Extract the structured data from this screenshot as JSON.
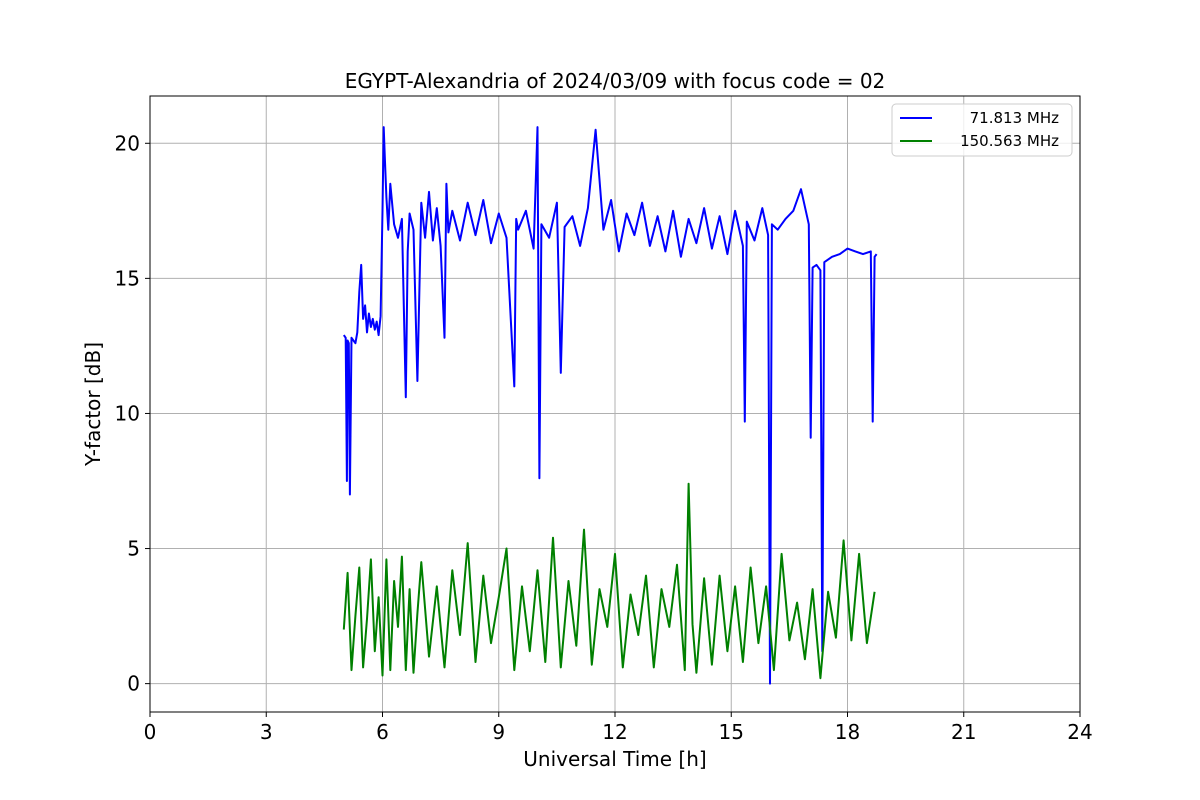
{
  "chart_data": {
    "type": "line",
    "title": "EGYPT-Alexandria of 2024/03/09 with focus code = 02",
    "xlabel": "Universal Time [h]",
    "ylabel": "Y-factor [dB]",
    "xlim": [
      0,
      24
    ],
    "ylim": [
      -1.05,
      21.75
    ],
    "xticks": [
      "0",
      "3",
      "6",
      "9",
      "12",
      "15",
      "18",
      "21",
      "24"
    ],
    "yticks": [
      "0",
      "5",
      "10",
      "15",
      "20"
    ],
    "grid": true,
    "legend_position": "top-right",
    "series": [
      {
        "name": "71.813 MHz",
        "color": "#0000ff",
        "x": [
          5.0,
          5.05,
          5.08,
          5.1,
          5.13,
          5.16,
          5.2,
          5.25,
          5.3,
          5.35,
          5.4,
          5.45,
          5.5,
          5.55,
          5.6,
          5.65,
          5.7,
          5.75,
          5.8,
          5.85,
          5.9,
          5.95,
          6.0,
          6.03,
          6.06,
          6.1,
          6.15,
          6.2,
          6.3,
          6.4,
          6.5,
          6.6,
          6.65,
          6.7,
          6.8,
          6.9,
          7.0,
          7.1,
          7.2,
          7.3,
          7.4,
          7.5,
          7.6,
          7.65,
          7.7,
          7.8,
          8.0,
          8.2,
          8.4,
          8.6,
          8.8,
          9.0,
          9.2,
          9.4,
          9.45,
          9.5,
          9.7,
          9.9,
          10.0,
          10.05,
          10.1,
          10.3,
          10.5,
          10.6,
          10.7,
          10.9,
          11.1,
          11.3,
          11.5,
          11.7,
          11.9,
          12.1,
          12.3,
          12.5,
          12.7,
          12.9,
          13.1,
          13.3,
          13.5,
          13.7,
          13.9,
          14.1,
          14.3,
          14.5,
          14.7,
          14.9,
          15.1,
          15.3,
          15.35,
          15.4,
          15.6,
          15.8,
          15.95,
          16.0,
          16.05,
          16.2,
          16.4,
          16.6,
          16.8,
          17.0,
          17.05,
          17.1,
          17.2,
          17.3,
          17.35,
          17.4,
          17.6,
          17.8,
          18.0,
          18.2,
          18.4,
          18.6,
          18.65,
          18.7,
          18.75
        ],
        "values": [
          12.9,
          12.8,
          7.5,
          12.7,
          12.6,
          7.0,
          12.8,
          12.7,
          12.6,
          13.0,
          14.5,
          15.5,
          13.5,
          14.0,
          13.0,
          13.7,
          13.2,
          13.5,
          13.1,
          13.4,
          12.9,
          13.6,
          17.5,
          20.6,
          19.5,
          18.0,
          16.8,
          18.5,
          17.0,
          16.5,
          17.2,
          10.6,
          16.0,
          17.4,
          16.8,
          11.2,
          17.8,
          16.5,
          18.2,
          16.4,
          17.6,
          16.2,
          12.8,
          18.5,
          16.7,
          17.5,
          16.4,
          17.8,
          16.6,
          17.9,
          16.3,
          17.4,
          16.5,
          11.0,
          17.2,
          16.8,
          17.5,
          16.1,
          20.6,
          7.6,
          17.0,
          16.5,
          17.8,
          11.5,
          16.9,
          17.3,
          16.2,
          17.6,
          20.5,
          16.8,
          17.9,
          16.0,
          17.4,
          16.6,
          17.8,
          16.2,
          17.3,
          16.0,
          17.5,
          15.8,
          17.2,
          16.3,
          17.6,
          16.1,
          17.3,
          15.9,
          17.5,
          16.2,
          9.7,
          17.1,
          16.4,
          17.6,
          16.6,
          0.0,
          17.0,
          16.8,
          17.2,
          17.5,
          18.3,
          17.0,
          9.1,
          15.4,
          15.5,
          15.3,
          1.2,
          15.6,
          15.8,
          15.9,
          16.1,
          16.0,
          15.9,
          16.0,
          9.7,
          15.8,
          15.9
        ]
      },
      {
        "name": "150.563 MHz",
        "color": "#008000",
        "x": [
          5.0,
          5.1,
          5.2,
          5.3,
          5.4,
          5.5,
          5.6,
          5.7,
          5.8,
          5.9,
          6.0,
          6.1,
          6.2,
          6.3,
          6.4,
          6.5,
          6.6,
          6.7,
          6.8,
          6.9,
          7.0,
          7.2,
          7.4,
          7.6,
          7.8,
          8.0,
          8.2,
          8.4,
          8.6,
          8.8,
          9.0,
          9.2,
          9.4,
          9.6,
          9.8,
          10.0,
          10.2,
          10.4,
          10.6,
          10.8,
          11.0,
          11.2,
          11.4,
          11.6,
          11.8,
          12.0,
          12.2,
          12.4,
          12.6,
          12.8,
          13.0,
          13.2,
          13.4,
          13.6,
          13.8,
          13.9,
          14.0,
          14.1,
          14.3,
          14.5,
          14.7,
          14.9,
          15.1,
          15.3,
          15.5,
          15.7,
          15.9,
          16.1,
          16.3,
          16.5,
          16.7,
          16.9,
          17.1,
          17.3,
          17.5,
          17.7,
          17.9,
          18.1,
          18.3,
          18.5,
          18.7
        ],
        "values": [
          2.0,
          4.1,
          0.5,
          2.5,
          4.3,
          0.6,
          2.4,
          4.6,
          1.2,
          3.2,
          0.3,
          4.6,
          0.5,
          3.8,
          2.1,
          4.7,
          0.5,
          3.5,
          0.4,
          2.6,
          4.5,
          1.0,
          3.6,
          0.6,
          4.2,
          1.8,
          5.2,
          0.8,
          4.0,
          1.5,
          3.2,
          5.0,
          0.5,
          3.6,
          1.2,
          4.2,
          0.8,
          5.4,
          0.6,
          3.8,
          1.4,
          5.7,
          0.7,
          3.5,
          2.1,
          4.8,
          0.6,
          3.3,
          1.8,
          4.0,
          0.6,
          3.5,
          2.1,
          4.4,
          0.5,
          7.4,
          2.2,
          0.4,
          3.9,
          0.7,
          4.0,
          1.2,
          3.6,
          0.8,
          4.3,
          1.5,
          3.6,
          0.5,
          4.8,
          1.6,
          3.0,
          0.9,
          3.5,
          0.2,
          3.4,
          1.7,
          5.3,
          1.6,
          4.8,
          1.5,
          3.4
        ]
      }
    ]
  }
}
